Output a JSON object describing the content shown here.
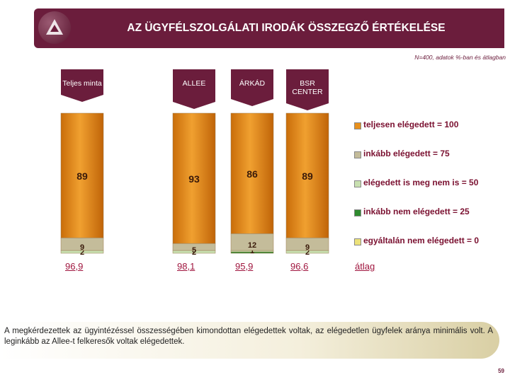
{
  "header": {
    "title": "AZ ÜGYFÉLSZOLGÁLATI IRODÁK ÖSSZEGZŐ ÉRTÉKELÉSE"
  },
  "note": "N=400, adatok %-ban és átlagban",
  "colors": {
    "header_bg": "#6b1d3c",
    "teljesen": "#e8901c",
    "inkabb": "#c4bc9a",
    "semleges": "#c8e0b0",
    "inkabb_nem": "#2e8b2e",
    "egyaltalan_nem": "#ece27a"
  },
  "chart_data": {
    "type": "bar",
    "stacked": true,
    "categories": [
      "Teljes minta",
      "ALLEE",
      "ÁRKÁD",
      "BSR CENTER"
    ],
    "ylim": [
      0,
      100
    ],
    "series": [
      {
        "name": "teljesen elégedett = 100",
        "values": [
          89,
          93,
          86,
          89
        ],
        "labels": [
          "89",
          "93",
          "86",
          "89"
        ]
      },
      {
        "name": "inkább elégedett = 75",
        "values": [
          9,
          5,
          12,
          9
        ],
        "labels": [
          "9",
          "5",
          "12",
          "9"
        ]
      },
      {
        "name": "elégedett is meg nem is = 50",
        "values": [
          2,
          2,
          1,
          2
        ],
        "labels": [
          "2",
          "2",
          "1",
          "2"
        ]
      },
      {
        "name": "inkább nem elégedett = 25",
        "values": [
          0,
          0,
          1,
          0
        ],
        "labels": [
          "",
          "",
          "",
          ""
        ]
      },
      {
        "name": "egyáltalán nem elégedett = 0",
        "values": [
          0,
          0,
          0,
          0
        ],
        "labels": [
          "",
          "",
          "",
          ""
        ]
      }
    ],
    "averages": [
      "96,9",
      "98,1",
      "95,9",
      "96,6"
    ],
    "average_label": "átlag",
    "legend_position": "right"
  },
  "summary": "A megkérdezettek az ügyintézéssel összességében kimondottan elégedettek voltak, az elégedetlen ügyfelek aránya minimális volt. A leginkább az Allee-t felkeresők voltak elégedettek.",
  "page_number": "59"
}
